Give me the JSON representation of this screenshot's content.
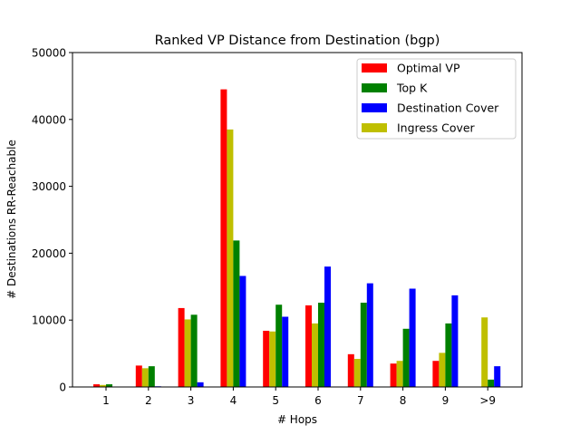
{
  "chart_data": {
    "type": "bar",
    "title": "Ranked VP Distance from Destination (bgp)",
    "xlabel": "# Hops",
    "ylabel": "# Destinations RR-Reachable",
    "ylim": [
      0,
      50000
    ],
    "yticks": [
      "0",
      "10000",
      "20000",
      "30000",
      "40000",
      "50000"
    ],
    "categories": [
      "1",
      "2",
      "3",
      "4",
      "5",
      "6",
      "7",
      "8",
      "9",
      ">9"
    ],
    "legend_position": "top-right",
    "grid": false,
    "series": [
      {
        "name": "Optimal VP",
        "color": "#ff0000",
        "values": [
          400,
          3200,
          11800,
          44500,
          8400,
          12200,
          4900,
          3500,
          3900,
          0
        ]
      },
      {
        "name": "Ingress Cover",
        "color": "#bfbf00",
        "values": [
          300,
          2800,
          10100,
          38500,
          8300,
          9500,
          4200,
          3900,
          5100,
          10400
        ]
      },
      {
        "name": "Top K",
        "color": "#008000",
        "values": [
          400,
          3100,
          10800,
          21900,
          12300,
          12600,
          12600,
          8700,
          9500,
          1100
        ]
      },
      {
        "name": "Destination Cover",
        "color": "#0000ff",
        "values": [
          0,
          100,
          700,
          16600,
          10500,
          18000,
          15500,
          14700,
          13700,
          3100
        ]
      }
    ],
    "legend_order": [
      "Optimal VP",
      "Top K",
      "Destination Cover",
      "Ingress Cover"
    ]
  }
}
